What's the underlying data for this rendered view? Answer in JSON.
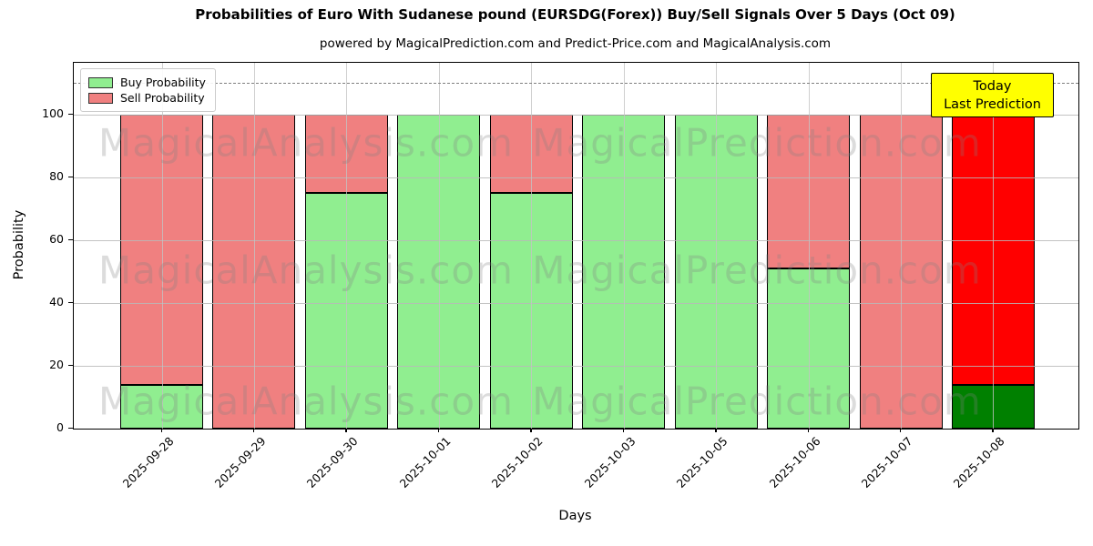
{
  "chart_data": {
    "type": "bar",
    "stacked": true,
    "title": "Probabilities of Euro With Sudanese pound (EURSDG(Forex)) Buy/Sell Signals Over 5 Days (Oct 09)",
    "subtitle": "powered by MagicalPrediction.com and Predict-Price.com and MagicalAnalysis.com",
    "xlabel": "Days",
    "ylabel": "Probability",
    "categories": [
      "2025-09-28",
      "2025-09-29",
      "2025-09-30",
      "2025-10-01",
      "2025-10-02",
      "2025-10-03",
      "2025-10-05",
      "2025-10-06",
      "2025-10-07",
      "2025-10-08"
    ],
    "series": [
      {
        "name": "Buy Probability",
        "color": "#90ee90",
        "values": [
          14,
          0,
          75,
          100,
          75,
          100,
          100,
          51,
          0,
          14
        ]
      },
      {
        "name": "Sell Probability",
        "color": "#f08080",
        "values": [
          86,
          100,
          25,
          0,
          25,
          0,
          0,
          49,
          100,
          86
        ]
      }
    ],
    "today_bar": {
      "category": "2025-10-08",
      "index": 9,
      "buy_color": "#008000",
      "sell_color": "#ff0000"
    },
    "yticks": [
      0,
      20,
      40,
      60,
      80,
      100
    ],
    "ylim": [
      0,
      116.5
    ],
    "dashed_line_y": 110,
    "grid": true,
    "legend_position": "upper left"
  },
  "annotation": {
    "line1": "Today",
    "line2": "Last Prediction",
    "bg_color": "#ffff00"
  },
  "watermarks": [
    "MagicalAnalysis.com",
    "MagicalPrediction.com"
  ]
}
